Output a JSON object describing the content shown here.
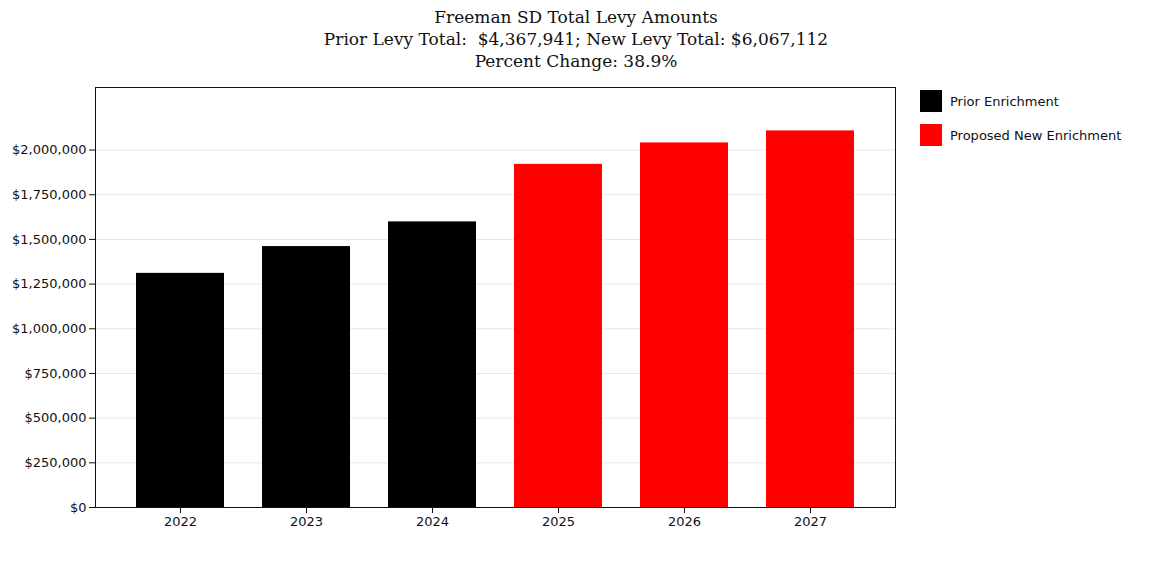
{
  "chart_data": {
    "type": "bar",
    "title": "Freeman SD Total Levy Amounts",
    "subtitle": "Prior Levy Total:  $4,367,941; New Levy Total: $6,067,112\nPercent Change: 38.9%",
    "categories": [
      "2022",
      "2023",
      "2024",
      "2025",
      "2026",
      "2027"
    ],
    "series": [
      {
        "name": "Prior Enrichment",
        "color": "#000000",
        "values": [
          1310000,
          1460000,
          1597941,
          null,
          null,
          null
        ]
      },
      {
        "name": "Proposed New Enrichment",
        "color": "#ff0000",
        "values": [
          null,
          null,
          null,
          1920000,
          2040000,
          2107112
        ]
      }
    ],
    "ylim": [
      0,
      2350000
    ],
    "yticks": [
      {
        "value": 0,
        "label": "$0"
      },
      {
        "value": 250000,
        "label": "$250,000"
      },
      {
        "value": 500000,
        "label": "$500,000"
      },
      {
        "value": 750000,
        "label": "$750,000"
      },
      {
        "value": 1000000,
        "label": "$1,000,000"
      },
      {
        "value": 1250000,
        "label": "$1,250,000"
      },
      {
        "value": 1500000,
        "label": "$1,500,000"
      },
      {
        "value": 1750000,
        "label": "$1,750,000"
      },
      {
        "value": 2000000,
        "label": "$2,000,000"
      }
    ],
    "grid": true,
    "legend": "upper right"
  }
}
